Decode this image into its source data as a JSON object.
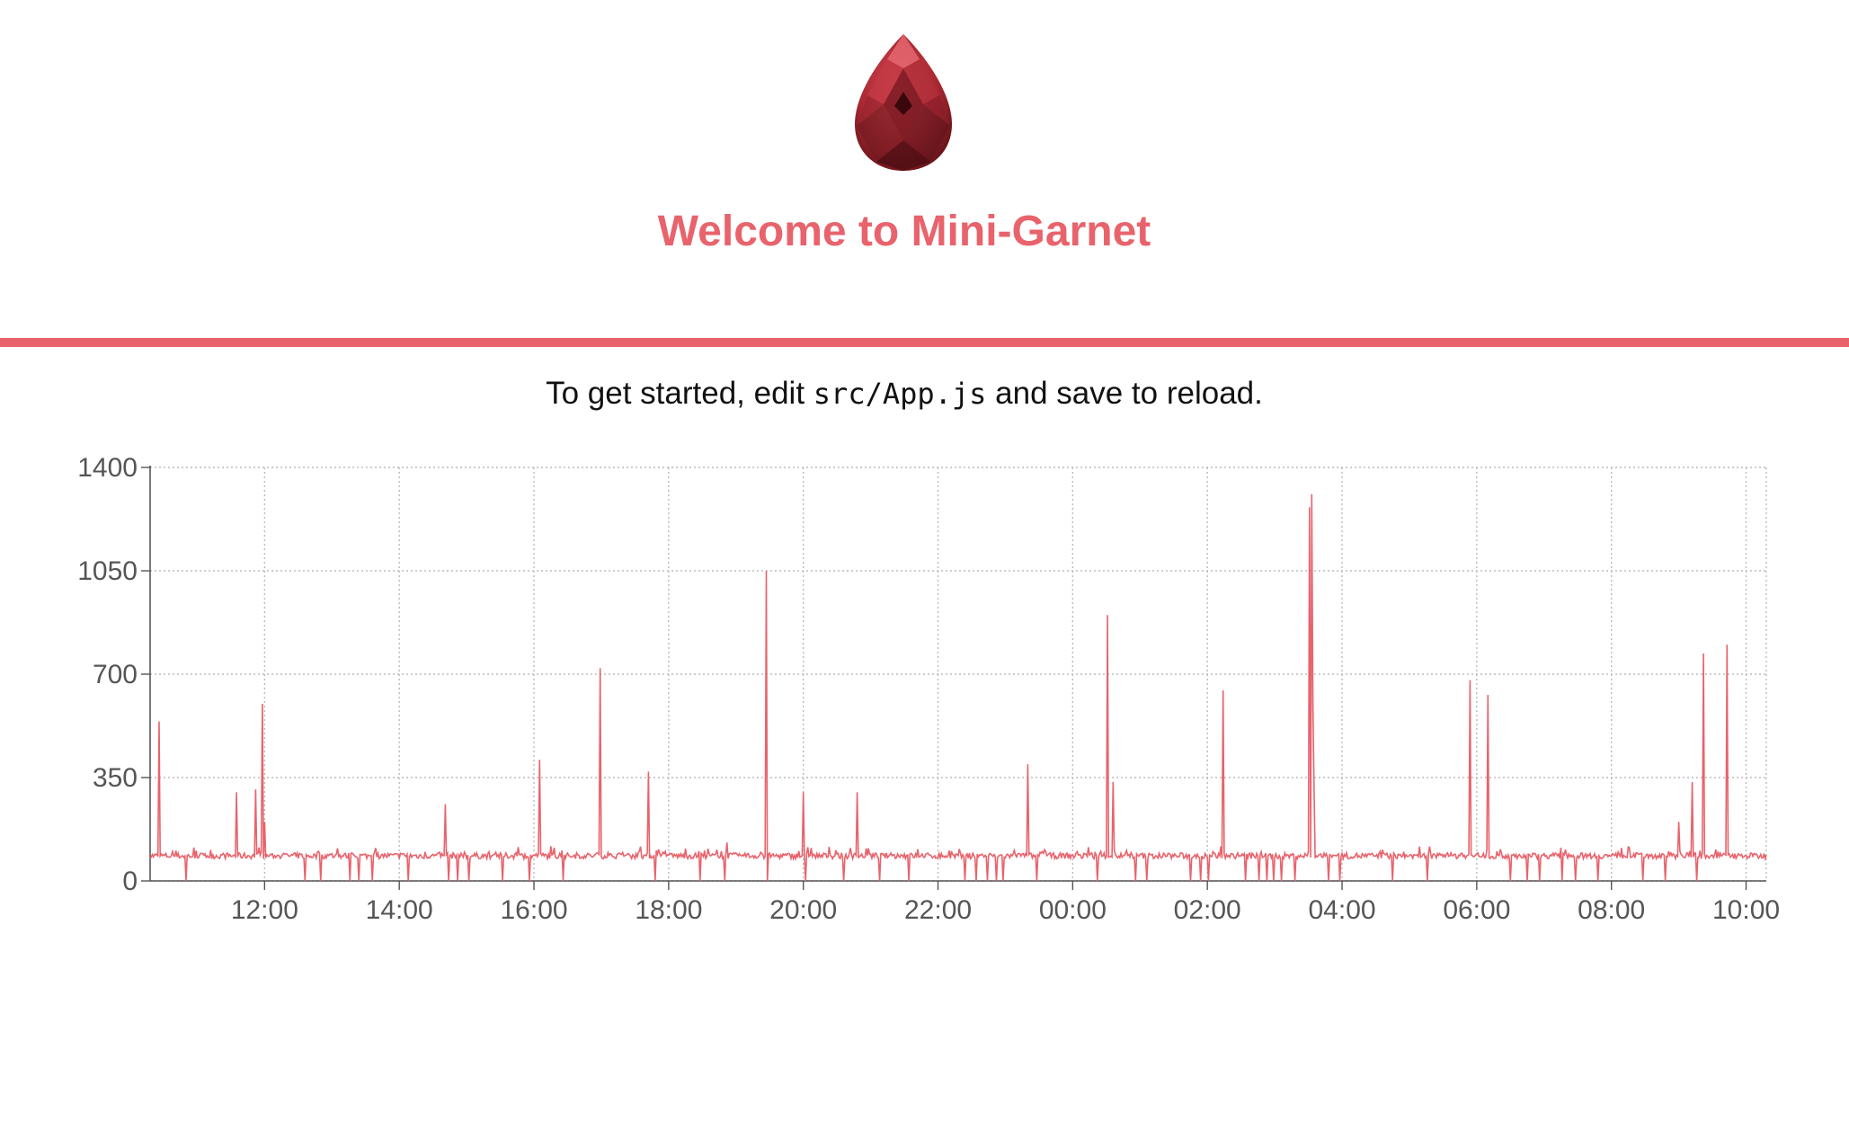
{
  "header": {
    "logo_icon": "garnet-gem-icon",
    "title": "Welcome to Mini-Garnet",
    "accent_color": "#e8636c"
  },
  "intro": {
    "before": "To get started, edit ",
    "code": "src/App.js",
    "after": " and save to reload."
  },
  "chart_data": {
    "type": "line",
    "x_range": [
      "10:18",
      "10:18 (+1 day)"
    ],
    "ylim": [
      0,
      1400
    ],
    "y_ticks": [
      "0",
      "350",
      "700",
      "1050",
      "1400"
    ],
    "x_ticks": [
      "12:00",
      "14:00",
      "16:00",
      "18:00",
      "20:00",
      "22:00",
      "00:00",
      "02:00",
      "04:00",
      "06:00",
      "08:00",
      "10:00"
    ],
    "grid": true,
    "series_color": "#e8636c",
    "baseline_value": 85,
    "baseline_noise": 10,
    "spikes": [
      {
        "t": "10:26",
        "v": 540
      },
      {
        "t": "11:35",
        "v": 300
      },
      {
        "t": "11:52",
        "v": 310
      },
      {
        "t": "11:58",
        "v": 600
      },
      {
        "t": "12:00",
        "v": 200
      },
      {
        "t": "14:41",
        "v": 260
      },
      {
        "t": "16:05",
        "v": 410
      },
      {
        "t": "16:59",
        "v": 720
      },
      {
        "t": "17:42",
        "v": 370
      },
      {
        "t": "18:52",
        "v": 130
      },
      {
        "t": "19:27",
        "v": 1050
      },
      {
        "t": "20:00",
        "v": 300
      },
      {
        "t": "20:48",
        "v": 300
      },
      {
        "t": "23:20",
        "v": 395
      },
      {
        "t": "00:31",
        "v": 900
      },
      {
        "t": "00:36",
        "v": 335
      },
      {
        "t": "02:14",
        "v": 645
      },
      {
        "t": "03:31",
        "v": 1265
      },
      {
        "t": "03:33",
        "v": 1310
      },
      {
        "t": "03:34",
        "v": 600
      },
      {
        "t": "03:35",
        "v": 330
      },
      {
        "t": "05:54",
        "v": 680
      },
      {
        "t": "06:10",
        "v": 630
      },
      {
        "t": "09:00",
        "v": 200
      },
      {
        "t": "09:12",
        "v": 335
      },
      {
        "t": "09:22",
        "v": 770
      },
      {
        "t": "09:43",
        "v": 800
      }
    ],
    "dips": [
      "10:50",
      "11:35",
      "12:00",
      "12:36",
      "12:50",
      "13:16",
      "13:24",
      "13:36",
      "14:08",
      "14:44",
      "14:52",
      "15:02",
      "15:32",
      "15:56",
      "16:26",
      "16:59",
      "17:48",
      "18:28",
      "18:50",
      "19:28",
      "20:02",
      "20:36",
      "21:08",
      "21:34",
      "22:24",
      "22:34",
      "22:44",
      "22:52",
      "22:58",
      "23:28",
      "00:22",
      "00:56",
      "01:06",
      "01:45",
      "01:54",
      "02:01",
      "02:34",
      "02:46",
      "02:53",
      "02:59",
      "03:06",
      "03:18",
      "03:48",
      "03:58",
      "04:45",
      "05:16",
      "05:54",
      "06:30",
      "06:45",
      "06:56",
      "07:16",
      "07:28",
      "07:48",
      "08:28",
      "08:48",
      "09:16"
    ]
  }
}
